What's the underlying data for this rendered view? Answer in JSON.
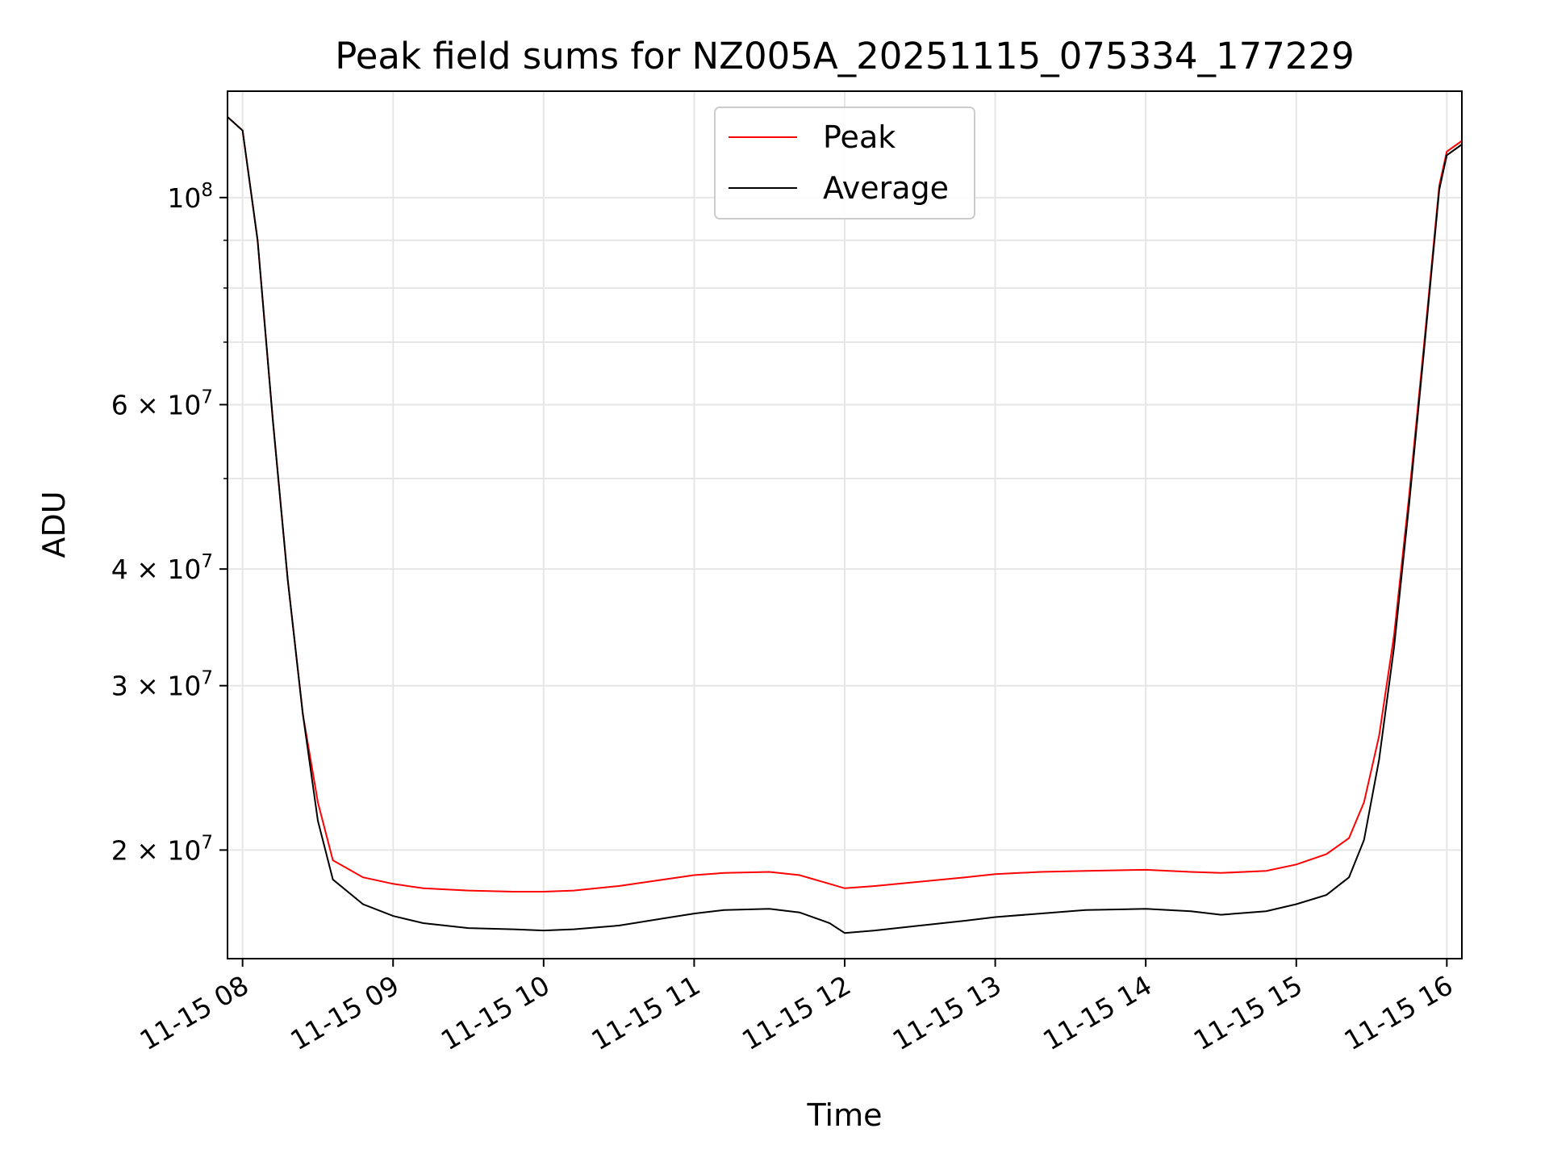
{
  "chart_data": {
    "type": "line",
    "title": "Peak field sums for NZ005A_20251115_075334_177229",
    "xlabel": "Time",
    "ylabel": "ADU",
    "yscale": "log",
    "ylim": [
      15300000,
      130000000
    ],
    "xlim_hours": [
      7.9,
      16.1
    ],
    "grid": true,
    "legend_position": "upper center",
    "x_ticks": [
      {
        "value": 8,
        "label": "11-15 08"
      },
      {
        "value": 9,
        "label": "11-15 09"
      },
      {
        "value": 10,
        "label": "11-15 10"
      },
      {
        "value": 11,
        "label": "11-15 11"
      },
      {
        "value": 12,
        "label": "11-15 12"
      },
      {
        "value": 13,
        "label": "11-15 13"
      },
      {
        "value": 14,
        "label": "11-15 14"
      },
      {
        "value": 15,
        "label": "11-15 15"
      },
      {
        "value": 16,
        "label": "11-15 16"
      }
    ],
    "y_ticks_major": [
      {
        "value": 100000000,
        "mantissa": "",
        "base": "10",
        "exp": "8"
      },
      {
        "value": 60000000,
        "mantissa": "6 × ",
        "base": "10",
        "exp": "7"
      },
      {
        "value": 40000000,
        "mantissa": "4 × ",
        "base": "10",
        "exp": "7"
      },
      {
        "value": 30000000,
        "mantissa": "3 × ",
        "base": "10",
        "exp": "7"
      },
      {
        "value": 20000000,
        "mantissa": "2 × ",
        "base": "10",
        "exp": "7"
      }
    ],
    "y_ticks_minor": [
      90000000,
      80000000,
      70000000,
      50000000
    ],
    "series": [
      {
        "name": "Peak",
        "color": "#ff0000",
        "x": [
          7.9,
          8.0,
          8.1,
          8.2,
          8.3,
          8.4,
          8.5,
          8.6,
          8.8,
          9.0,
          9.2,
          9.5,
          9.8,
          10.0,
          10.2,
          10.5,
          10.8,
          11.0,
          11.2,
          11.5,
          11.7,
          11.9,
          12.0,
          12.2,
          12.5,
          12.8,
          13.0,
          13.3,
          13.6,
          14.0,
          14.3,
          14.5,
          14.8,
          15.0,
          15.2,
          15.35,
          15.45,
          15.55,
          15.65,
          15.75,
          15.85,
          15.95,
          16.0,
          16.1
        ],
        "y": [
          122000000,
          118000000,
          90000000,
          58000000,
          39000000,
          28000000,
          22500000,
          19500000,
          18700000,
          18400000,
          18200000,
          18100000,
          18050000,
          18050000,
          18100000,
          18300000,
          18600000,
          18800000,
          18900000,
          18950000,
          18800000,
          18400000,
          18200000,
          18300000,
          18500000,
          18700000,
          18850000,
          18950000,
          19000000,
          19050000,
          18950000,
          18900000,
          19000000,
          19300000,
          19800000,
          20600000,
          22500000,
          26500000,
          34000000,
          48000000,
          70000000,
          103000000,
          112000000,
          115000000
        ]
      },
      {
        "name": "Average",
        "color": "#000000",
        "x": [
          7.9,
          8.0,
          8.1,
          8.2,
          8.3,
          8.4,
          8.5,
          8.6,
          8.8,
          9.0,
          9.2,
          9.5,
          9.8,
          10.0,
          10.2,
          10.5,
          10.8,
          11.0,
          11.2,
          11.5,
          11.7,
          11.9,
          12.0,
          12.2,
          12.5,
          12.8,
          13.0,
          13.3,
          13.6,
          14.0,
          14.3,
          14.5,
          14.8,
          15.0,
          15.2,
          15.35,
          15.45,
          15.55,
          15.65,
          15.75,
          15.85,
          15.95,
          16.0,
          16.1
        ],
        "y": [
          122000000,
          118000000,
          90000000,
          58000000,
          39000000,
          28000000,
          21500000,
          18600000,
          17500000,
          17000000,
          16700000,
          16500000,
          16450000,
          16400000,
          16450000,
          16600000,
          16900000,
          17100000,
          17250000,
          17300000,
          17150000,
          16700000,
          16300000,
          16400000,
          16600000,
          16800000,
          16950000,
          17100000,
          17250000,
          17300000,
          17200000,
          17050000,
          17200000,
          17500000,
          17900000,
          18700000,
          20500000,
          25000000,
          33000000,
          47000000,
          69000000,
          102000000,
          111000000,
          114000000
        ]
      }
    ]
  }
}
